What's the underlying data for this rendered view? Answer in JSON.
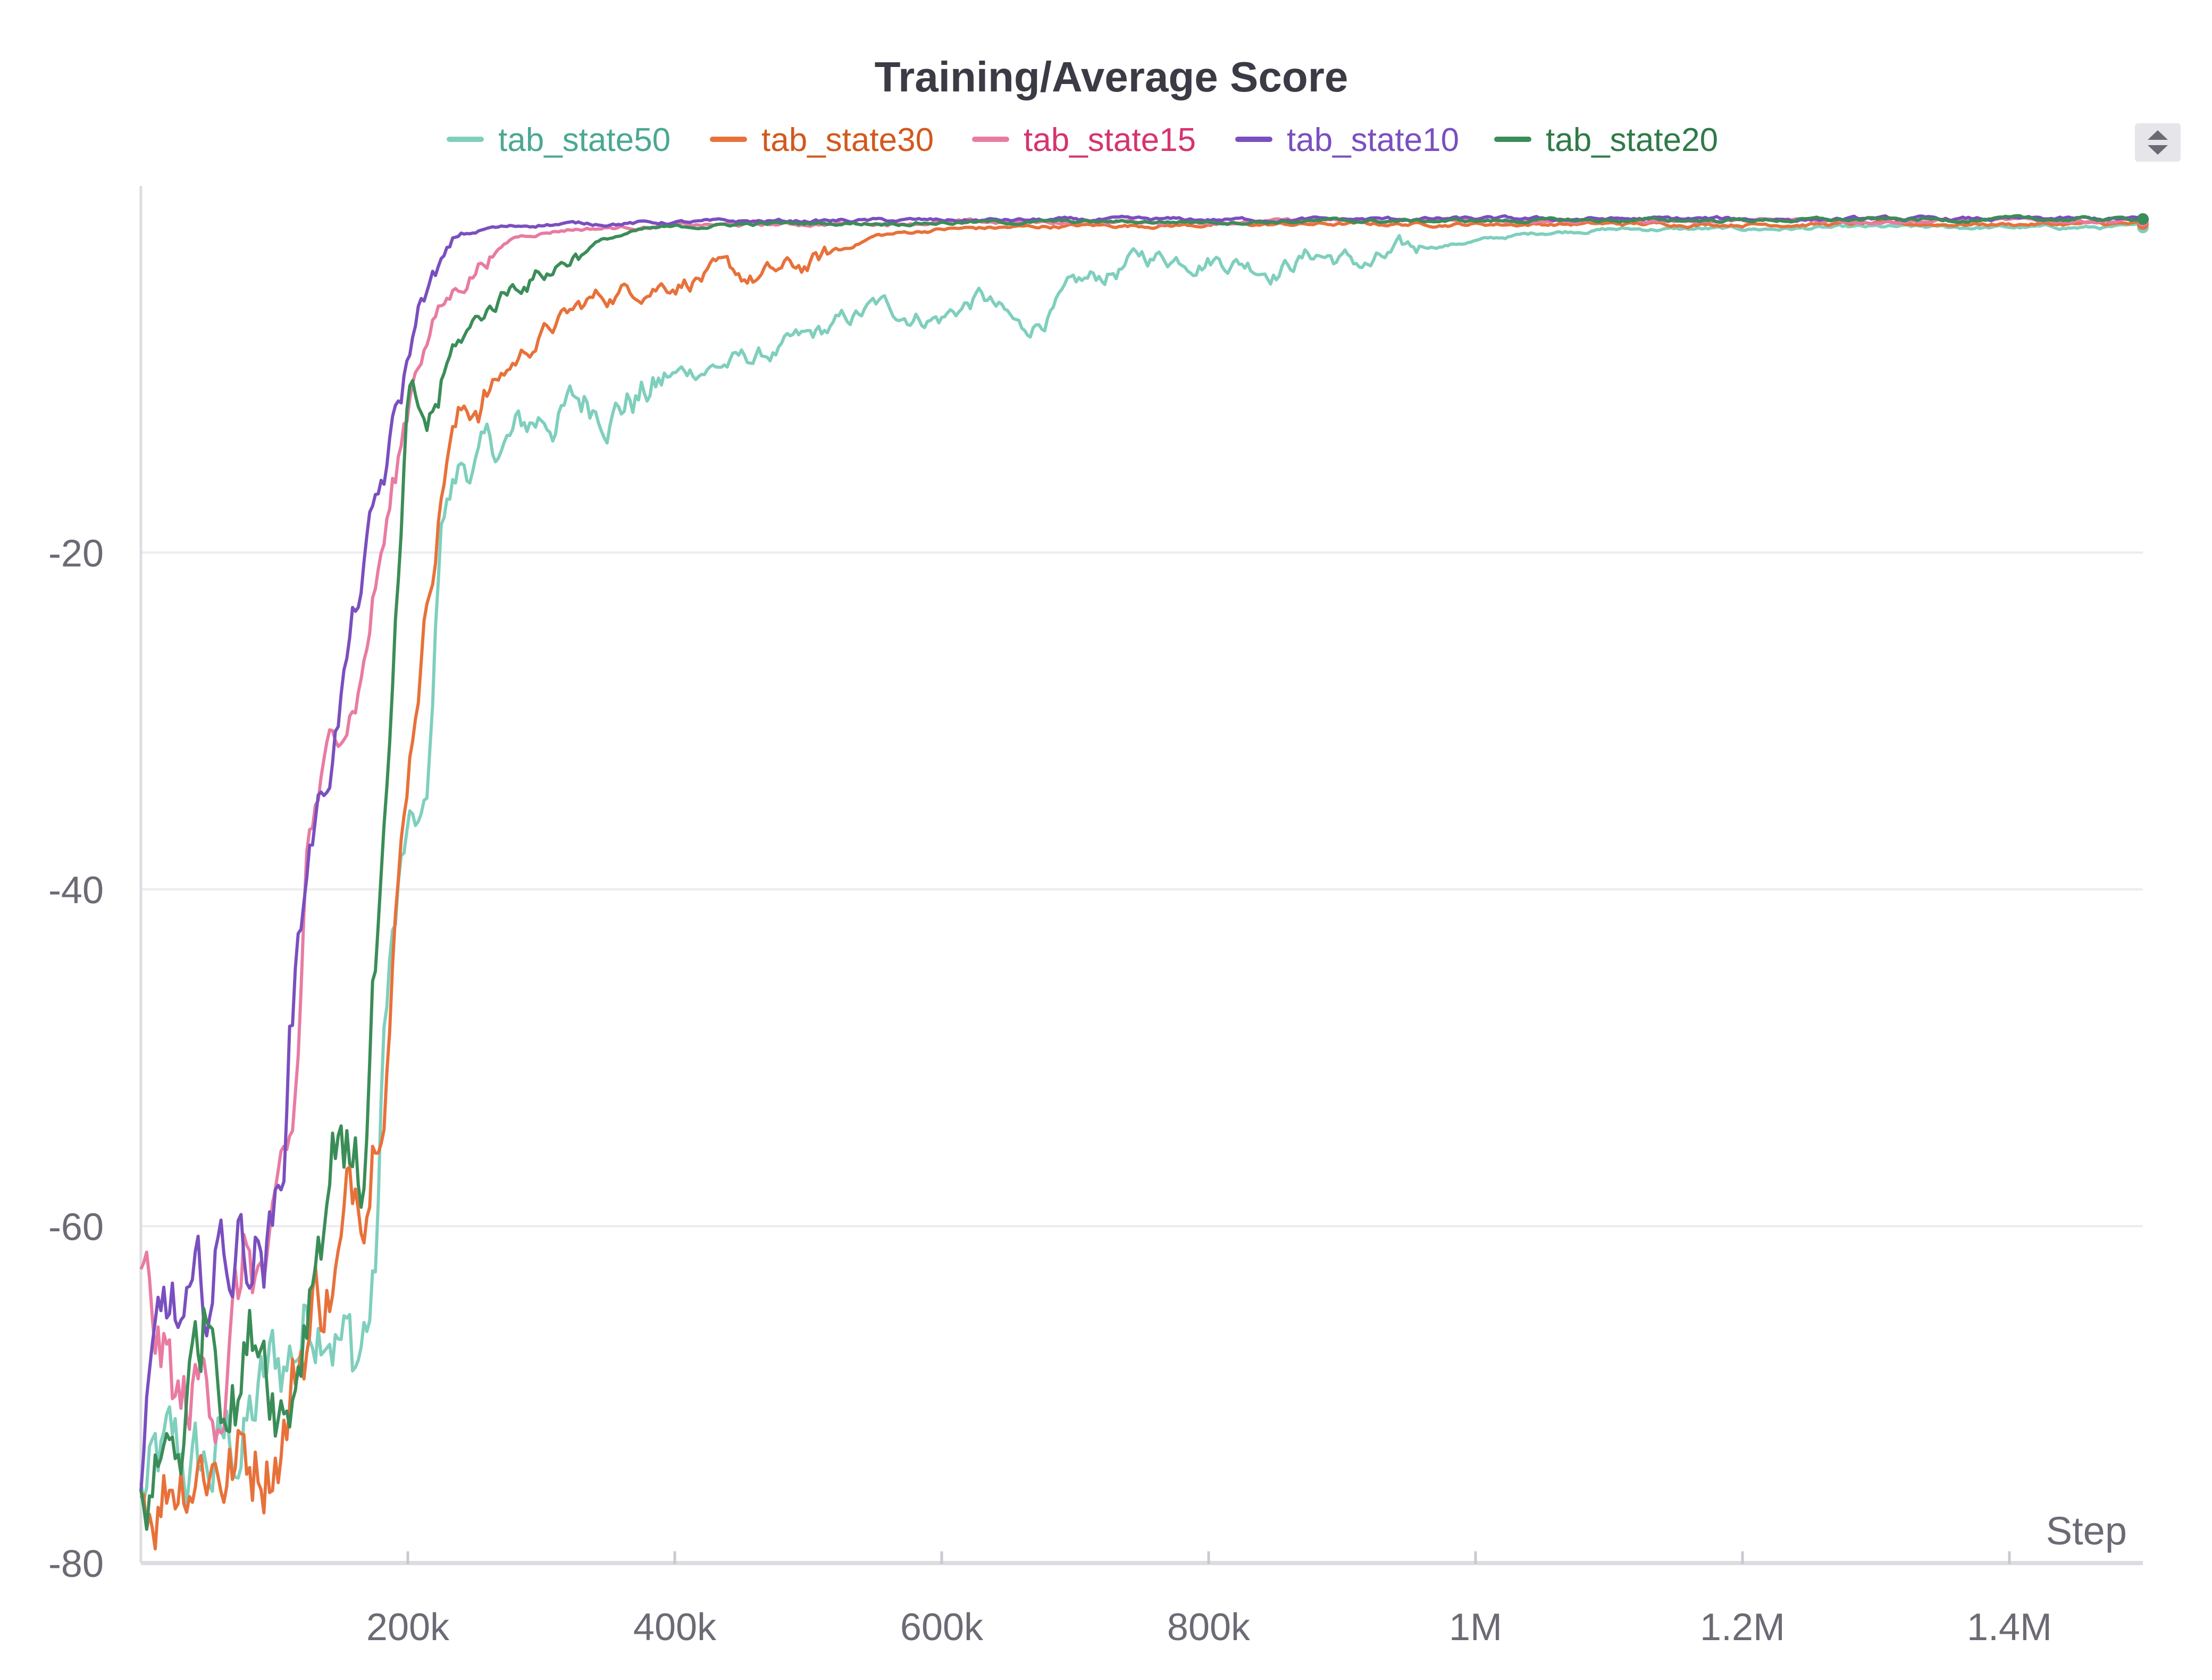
{
  "chart_data": {
    "type": "line",
    "title": "Training/Average Score",
    "xlabel": "Step",
    "ylabel": "",
    "xlim": [
      0,
      1500000
    ],
    "ylim": [
      -80,
      0
    ],
    "x_ticks": [
      200000,
      400000,
      600000,
      800000,
      1000000,
      1200000,
      1400000
    ],
    "x_tick_labels": [
      "200k",
      "400k",
      "600k",
      "800k",
      "1M",
      "1.2M",
      "1.4M"
    ],
    "y_ticks": [
      -20,
      -40,
      -60,
      -80
    ],
    "y_tick_labels": [
      "-20",
      "-40",
      "-60",
      "-80"
    ],
    "grid": true,
    "legend_position": "top",
    "series": [
      {
        "name": "tab_state50",
        "color": "#7fcfbd",
        "text_color": "#4aa892",
        "points": [
          [
            0,
            -76
          ],
          [
            50000,
            -75
          ],
          [
            80000,
            -72
          ],
          [
            110000,
            -68
          ],
          [
            140000,
            -62
          ],
          [
            160000,
            -68
          ],
          [
            175000,
            -64
          ],
          [
            185000,
            -45
          ],
          [
            200000,
            -38
          ],
          [
            215000,
            -36
          ],
          [
            225000,
            -18
          ],
          [
            240000,
            -15
          ],
          [
            270000,
            -14
          ],
          [
            300000,
            -12
          ],
          [
            340000,
            -11
          ],
          [
            380000,
            -10.5
          ],
          [
            420000,
            -9
          ],
          [
            460000,
            -8.5
          ],
          [
            500000,
            -7.5
          ],
          [
            550000,
            -5.5
          ],
          [
            600000,
            -6
          ],
          [
            630000,
            -4.8
          ],
          [
            660000,
            -7
          ],
          [
            700000,
            -4.5
          ],
          [
            750000,
            -2.5
          ],
          [
            800000,
            -2.3
          ],
          [
            850000,
            -3
          ],
          [
            880000,
            -2.2
          ],
          [
            920000,
            -3
          ],
          [
            960000,
            -2
          ],
          [
            1000000,
            -1.5
          ],
          [
            1050000,
            -1
          ],
          [
            1100000,
            -0.8
          ],
          [
            1200000,
            -0.8
          ],
          [
            1300000,
            -0.7
          ],
          [
            1400000,
            -0.7
          ],
          [
            1500000,
            -0.7
          ]
        ]
      },
      {
        "name": "tab_state30",
        "color": "#e8713a",
        "text_color": "#d2591c",
        "points": [
          [
            0,
            -76
          ],
          [
            40000,
            -72
          ],
          [
            80000,
            -74
          ],
          [
            110000,
            -70
          ],
          [
            130000,
            -64
          ],
          [
            150000,
            -62
          ],
          [
            170000,
            -55
          ],
          [
            185000,
            -44
          ],
          [
            200000,
            -32
          ],
          [
            215000,
            -22
          ],
          [
            230000,
            -13
          ],
          [
            250000,
            -11
          ],
          [
            270000,
            -9.5
          ],
          [
            300000,
            -7
          ],
          [
            340000,
            -5
          ],
          [
            380000,
            -4
          ],
          [
            420000,
            -3.5
          ],
          [
            460000,
            -3.8
          ],
          [
            500000,
            -3
          ],
          [
            550000,
            -1.2
          ],
          [
            600000,
            -0.8
          ],
          [
            700000,
            -0.6
          ],
          [
            900000,
            -0.5
          ],
          [
            1200000,
            -0.5
          ],
          [
            1500000,
            -0.5
          ]
        ]
      },
      {
        "name": "tab_state15",
        "color": "#e97ba3",
        "text_color": "#d6336f",
        "points": [
          [
            0,
            -64
          ],
          [
            30000,
            -72
          ],
          [
            60000,
            -68
          ],
          [
            80000,
            -62
          ],
          [
            100000,
            -64
          ],
          [
            115000,
            -56
          ],
          [
            125000,
            -38
          ],
          [
            140000,
            -33
          ],
          [
            150000,
            -30
          ],
          [
            165000,
            -27
          ],
          [
            175000,
            -22
          ],
          [
            190000,
            -16
          ],
          [
            205000,
            -9
          ],
          [
            220000,
            -6
          ],
          [
            240000,
            -4
          ],
          [
            260000,
            -2.2
          ],
          [
            280000,
            -1.2
          ],
          [
            320000,
            -0.8
          ],
          [
            400000,
            -0.6
          ],
          [
            600000,
            -0.4
          ],
          [
            1000000,
            -0.3
          ],
          [
            1500000,
            -0.3
          ]
        ]
      },
      {
        "name": "tab_state10",
        "color": "#7a4fbf",
        "text_color": "#7a4fbf",
        "points": [
          [
            0,
            -76
          ],
          [
            20000,
            -66
          ],
          [
            40000,
            -68
          ],
          [
            60000,
            -62
          ],
          [
            80000,
            -60
          ],
          [
            100000,
            -61
          ],
          [
            115000,
            -45
          ],
          [
            125000,
            -37
          ],
          [
            140000,
            -33
          ],
          [
            155000,
            -26
          ],
          [
            170000,
            -20
          ],
          [
            185000,
            -15
          ],
          [
            200000,
            -9
          ],
          [
            210000,
            -5
          ],
          [
            225000,
            -3
          ],
          [
            240000,
            -1.5
          ],
          [
            260000,
            -0.8
          ],
          [
            300000,
            -0.5
          ],
          [
            500000,
            -0.3
          ],
          [
            1000000,
            -0.2
          ],
          [
            1500000,
            -0.2
          ]
        ]
      },
      {
        "name": "tab_state20",
        "color": "#3b8d58",
        "text_color": "#2f7a48",
        "points": [
          [
            0,
            -76
          ],
          [
            30000,
            -72
          ],
          [
            50000,
            -64
          ],
          [
            70000,
            -68
          ],
          [
            90000,
            -65
          ],
          [
            110000,
            -70
          ],
          [
            130000,
            -60
          ],
          [
            150000,
            -52
          ],
          [
            165000,
            -58
          ],
          [
            175000,
            -44
          ],
          [
            185000,
            -34
          ],
          [
            200000,
            -12
          ],
          [
            215000,
            -13
          ],
          [
            235000,
            -8
          ],
          [
            255000,
            -6
          ],
          [
            280000,
            -4
          ],
          [
            310000,
            -3
          ],
          [
            340000,
            -1.5
          ],
          [
            380000,
            -0.8
          ],
          [
            450000,
            -0.5
          ],
          [
            600000,
            -0.4
          ],
          [
            1000000,
            -0.3
          ],
          [
            1500000,
            -0.2
          ]
        ]
      }
    ]
  }
}
